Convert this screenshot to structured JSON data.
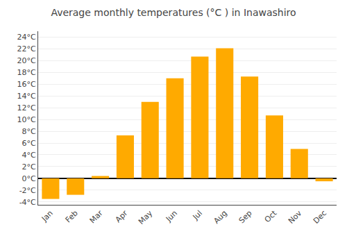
{
  "chart_data": {
    "type": "bar",
    "title": "Average monthly temperatures (°C ) in Inawashiro",
    "categories": [
      "Jan",
      "Feb",
      "Mar",
      "Apr",
      "May",
      "Jun",
      "Jul",
      "Aug",
      "Sep",
      "Oct",
      "Nov",
      "Dec"
    ],
    "values": [
      -3.5,
      -2.8,
      0.4,
      7.3,
      13.0,
      17.0,
      20.7,
      22.1,
      17.3,
      10.7,
      5.0,
      -0.5
    ],
    "color": "#FFAA00",
    "ylim": [
      -4.5,
      25
    ],
    "yticks": [
      {
        "value": -4,
        "label": "-4°C"
      },
      {
        "value": -2,
        "label": "-2°C"
      },
      {
        "value": 0,
        "label": "0°C"
      },
      {
        "value": 2,
        "label": "2°C"
      },
      {
        "value": 4,
        "label": "4°C"
      },
      {
        "value": 6,
        "label": "6°C"
      },
      {
        "value": 8,
        "label": "8°C"
      },
      {
        "value": 10,
        "label": "10°C"
      },
      {
        "value": 12,
        "label": "12°C"
      },
      {
        "value": 14,
        "label": "14°C"
      },
      {
        "value": 16,
        "label": "16°C"
      },
      {
        "value": 18,
        "label": "18°C"
      },
      {
        "value": 20,
        "label": "20°C"
      },
      {
        "value": 22,
        "label": "22°C"
      },
      {
        "value": 24,
        "label": "24°C"
      }
    ],
    "grid": true
  }
}
